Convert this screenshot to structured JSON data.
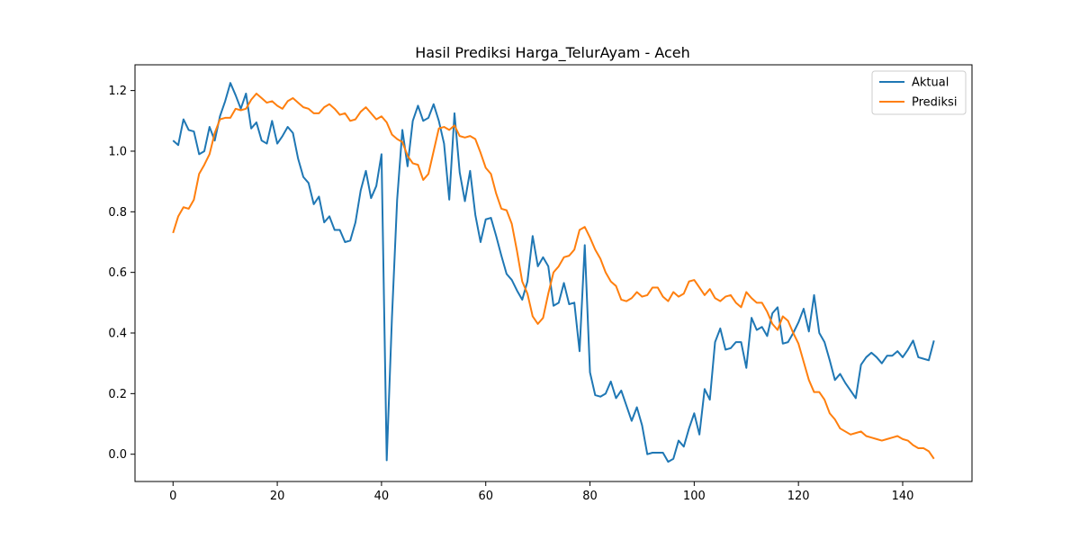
{
  "chart_data": {
    "type": "line",
    "title": "Hasil Prediksi Harga_TelurAyam - Aceh",
    "xlabel": "",
    "ylabel": "",
    "xlim": [
      -7.3,
      153.3
    ],
    "ylim": [
      -0.09,
      1.285
    ],
    "xticks": [
      0,
      20,
      40,
      60,
      80,
      100,
      120,
      140
    ],
    "yticks": [
      0.0,
      0.2,
      0.4,
      0.6,
      0.8,
      1.0,
      1.2
    ],
    "ytick_labels": [
      "0.0",
      "0.2",
      "0.4",
      "0.6",
      "0.8",
      "1.0",
      "1.2"
    ],
    "grid": false,
    "legend_position": "top-right",
    "series": [
      {
        "name": "Aktual",
        "color": "#1f77b4",
        "values": [
          1.035,
          1.02,
          1.105,
          1.07,
          1.065,
          0.99,
          1.0,
          1.08,
          1.035,
          1.115,
          1.165,
          1.225,
          1.185,
          1.14,
          1.19,
          1.075,
          1.095,
          1.035,
          1.025,
          1.1,
          1.025,
          1.05,
          1.08,
          1.06,
          0.975,
          0.915,
          0.895,
          0.825,
          0.85,
          0.765,
          0.785,
          0.74,
          0.74,
          0.7,
          0.705,
          0.765,
          0.87,
          0.935,
          0.845,
          0.885,
          0.99,
          -0.02,
          0.45,
          0.84,
          1.07,
          0.95,
          1.1,
          1.15,
          1.1,
          1.11,
          1.155,
          1.1,
          1.025,
          0.84,
          1.125,
          0.93,
          0.835,
          0.935,
          0.79,
          0.7,
          0.775,
          0.78,
          0.72,
          0.655,
          0.595,
          0.575,
          0.54,
          0.51,
          0.57,
          0.72,
          0.62,
          0.65,
          0.62,
          0.49,
          0.5,
          0.565,
          0.495,
          0.5,
          0.34,
          0.69,
          0.27,
          0.195,
          0.19,
          0.2,
          0.24,
          0.185,
          0.21,
          0.16,
          0.11,
          0.155,
          0.095,
          0.0,
          0.005,
          0.005,
          0.005,
          -0.025,
          -0.015,
          0.045,
          0.025,
          0.085,
          0.135,
          0.065,
          0.215,
          0.18,
          0.37,
          0.415,
          0.345,
          0.35,
          0.37,
          0.37,
          0.285,
          0.45,
          0.41,
          0.42,
          0.39,
          0.465,
          0.485,
          0.365,
          0.37,
          0.4,
          0.435,
          0.48,
          0.405,
          0.525,
          0.4,
          0.37,
          0.31,
          0.245,
          0.265,
          0.235,
          0.21,
          0.185,
          0.295,
          0.32,
          0.335,
          0.32,
          0.3,
          0.325,
          0.325,
          0.34,
          0.32,
          0.345,
          0.375,
          0.32,
          0.315,
          0.31,
          0.375
        ]
      },
      {
        "name": "Prediksi",
        "color": "#ff7f0e",
        "values": [
          0.73,
          0.785,
          0.815,
          0.81,
          0.84,
          0.925,
          0.955,
          0.99,
          1.06,
          1.105,
          1.11,
          1.11,
          1.14,
          1.135,
          1.14,
          1.17,
          1.19,
          1.175,
          1.16,
          1.165,
          1.15,
          1.14,
          1.165,
          1.175,
          1.16,
          1.145,
          1.14,
          1.125,
          1.125,
          1.145,
          1.155,
          1.14,
          1.12,
          1.125,
          1.1,
          1.105,
          1.13,
          1.145,
          1.125,
          1.105,
          1.115,
          1.095,
          1.055,
          1.04,
          1.03,
          0.985,
          0.96,
          0.955,
          0.905,
          0.925,
          1.0,
          1.075,
          1.08,
          1.07,
          1.085,
          1.05,
          1.045,
          1.05,
          1.04,
          0.995,
          0.945,
          0.925,
          0.86,
          0.81,
          0.805,
          0.76,
          0.67,
          0.57,
          0.53,
          0.455,
          0.43,
          0.45,
          0.53,
          0.6,
          0.62,
          0.65,
          0.655,
          0.675,
          0.74,
          0.75,
          0.715,
          0.675,
          0.645,
          0.6,
          0.57,
          0.555,
          0.51,
          0.505,
          0.515,
          0.535,
          0.52,
          0.525,
          0.55,
          0.55,
          0.52,
          0.505,
          0.535,
          0.52,
          0.53,
          0.57,
          0.575,
          0.55,
          0.525,
          0.545,
          0.515,
          0.505,
          0.52,
          0.525,
          0.5,
          0.485,
          0.535,
          0.515,
          0.5,
          0.5,
          0.47,
          0.43,
          0.41,
          0.455,
          0.44,
          0.4,
          0.365,
          0.305,
          0.245,
          0.205,
          0.205,
          0.18,
          0.135,
          0.115,
          0.085,
          0.075,
          0.065,
          0.07,
          0.075,
          0.06,
          0.055,
          0.05,
          0.045,
          0.05,
          0.055,
          0.06,
          0.05,
          0.045,
          0.03,
          0.02,
          0.02,
          0.01,
          -0.015
        ]
      }
    ]
  }
}
